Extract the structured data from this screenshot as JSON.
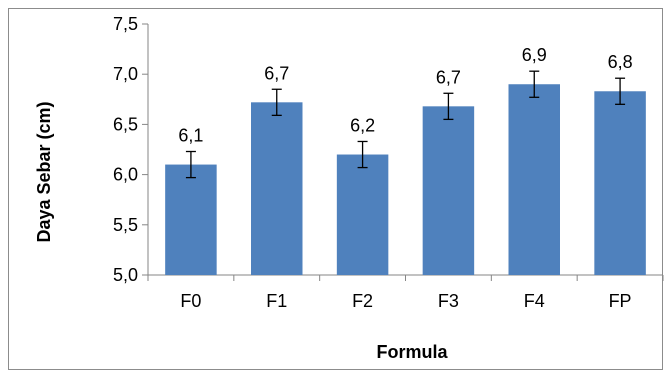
{
  "chart_data": {
    "type": "bar",
    "categories": [
      "F0",
      "F1",
      "F2",
      "F3",
      "F4",
      "FP"
    ],
    "values": [
      6.1,
      6.72,
      6.2,
      6.68,
      6.9,
      6.83
    ],
    "data_labels": [
      "6,1",
      "6,7",
      "6,2",
      "6,7",
      "6,9",
      "6,8"
    ],
    "error": [
      0.13,
      0.13,
      0.13,
      0.13,
      0.13,
      0.13
    ],
    "xlabel": "Formula",
    "ylabel": "Daya Sebar (cm)",
    "ylim": [
      5.0,
      7.5
    ],
    "yticks": [
      5.0,
      5.5,
      6.0,
      6.5,
      7.0,
      7.5
    ],
    "ytick_labels": [
      "5,0",
      "5,5",
      "6,0",
      "6,5",
      "7,0",
      "7,5"
    ],
    "grid": false,
    "legend": "none",
    "bar_color": "#4f81bd",
    "axis_color": "#868686"
  }
}
